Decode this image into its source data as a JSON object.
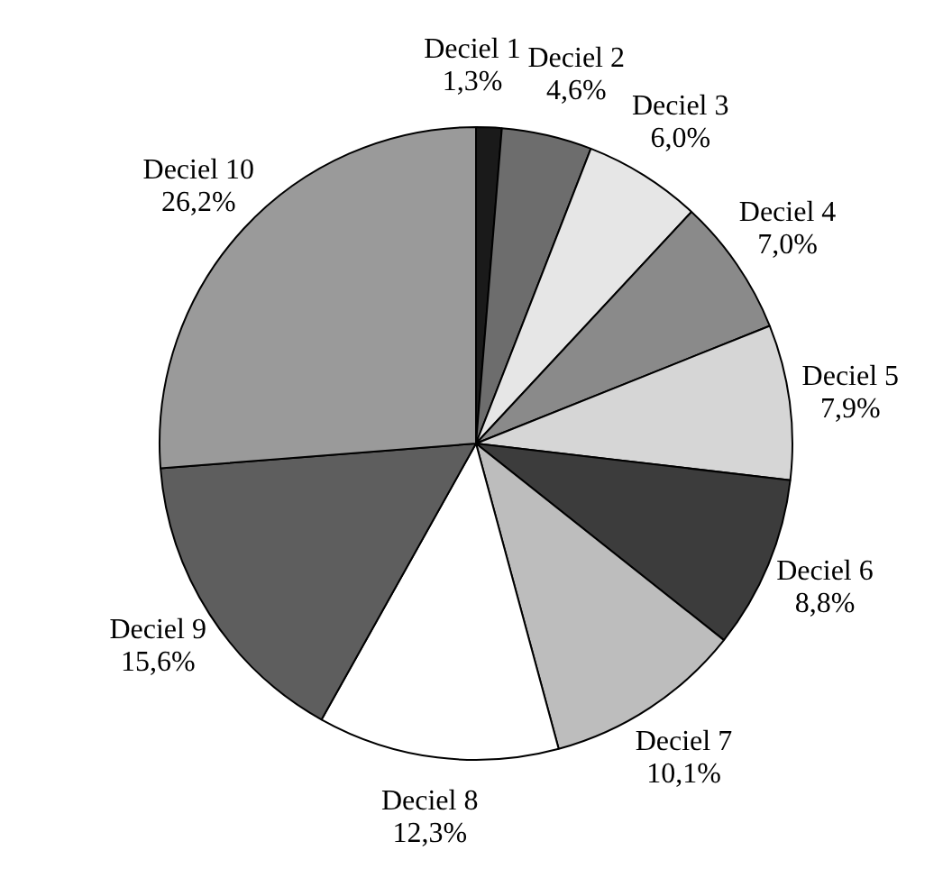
{
  "chart_data": {
    "type": "pie",
    "categories": [
      "Deciel 1",
      "Deciel 2",
      "Deciel 3",
      "Deciel 4",
      "Deciel 5",
      "Deciel 6",
      "Deciel 7",
      "Deciel 8",
      "Deciel 9",
      "Deciel 10"
    ],
    "values": [
      1.3,
      4.6,
      6.0,
      7.0,
      7.9,
      8.8,
      10.1,
      12.3,
      15.6,
      26.2
    ],
    "colors": [
      "#1a1a1a",
      "#6d6d6d",
      "#e6e6e6",
      "#8a8a8a",
      "#d6d6d6",
      "#3c3c3c",
      "#bdbdbd",
      "#ffffff",
      "#5e5e5e",
      "#9a9a9a"
    ],
    "value_labels": [
      "1,3%",
      "4,6%",
      "6,0%",
      "7,0%",
      "7,9%",
      "8,8%",
      "10,1%",
      "12,3%",
      "15,6%",
      "26,2%"
    ],
    "legend": false
  }
}
